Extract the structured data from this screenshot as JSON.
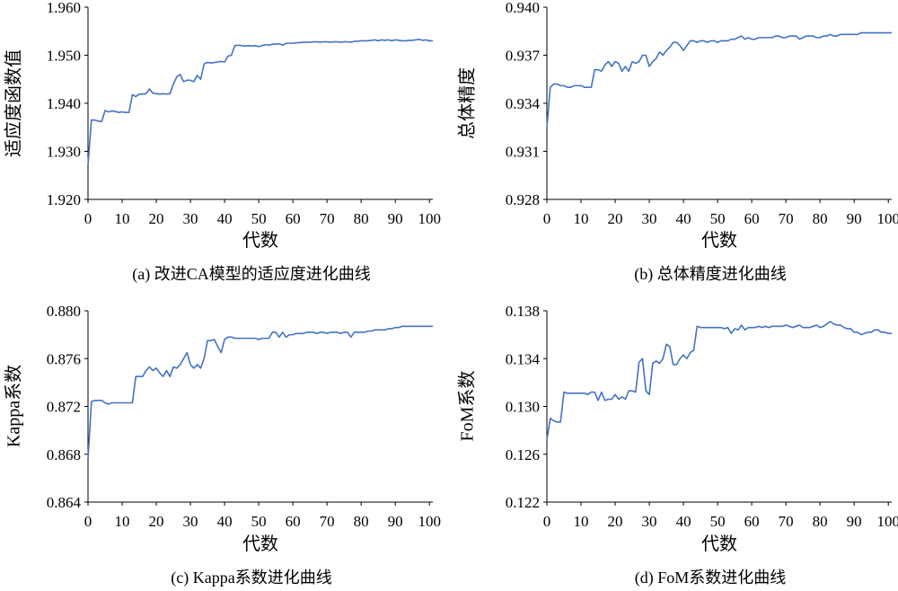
{
  "chart_data": [
    {
      "type": "line",
      "caption": "(a) 改进CA模型的适应度进化曲线",
      "xlabel": "代数",
      "ylabel": "适应度函数值",
      "xlim": [
        0,
        101
      ],
      "ylim": [
        1.92,
        1.96
      ],
      "xticks": [
        "0",
        "10",
        "20",
        "30",
        "40",
        "50",
        "60",
        "70",
        "80",
        "90",
        "100"
      ],
      "yticks": [
        "1.920",
        "1.930",
        "1.940",
        "1.950",
        "1.960"
      ],
      "color": "#4472c4",
      "x": [
        0,
        1,
        2,
        3,
        4,
        5,
        6,
        7,
        8,
        9,
        10,
        11,
        12,
        13,
        14,
        15,
        16,
        17,
        18,
        19,
        20,
        21,
        22,
        23,
        24,
        25,
        26,
        27,
        28,
        29,
        30,
        31,
        32,
        33,
        34,
        35,
        36,
        37,
        38,
        39,
        40,
        41,
        42,
        43,
        44,
        45,
        46,
        47,
        48,
        49,
        50,
        51,
        52,
        53,
        54,
        55,
        56,
        57,
        58,
        59,
        60,
        61,
        62,
        63,
        64,
        65,
        66,
        67,
        68,
        69,
        70,
        71,
        72,
        73,
        74,
        75,
        76,
        77,
        78,
        79,
        80,
        81,
        82,
        83,
        84,
        85,
        86,
        87,
        88,
        89,
        90,
        91,
        92,
        93,
        94,
        95,
        96,
        97,
        98,
        99,
        100,
        101
      ],
      "y": [
        1.9272,
        1.9365,
        1.9365,
        1.9363,
        1.9362,
        1.9385,
        1.9382,
        1.9384,
        1.9383,
        1.9381,
        1.9382,
        1.9381,
        1.9381,
        1.9418,
        1.9414,
        1.9419,
        1.9419,
        1.942,
        1.943,
        1.9421,
        1.942,
        1.9419,
        1.942,
        1.9419,
        1.942,
        1.944,
        1.9455,
        1.946,
        1.9445,
        1.9448,
        1.9448,
        1.9445,
        1.9458,
        1.945,
        1.9482,
        1.9485,
        1.9484,
        1.9485,
        1.9486,
        1.9487,
        1.9486,
        1.9498,
        1.95,
        1.952,
        1.9521,
        1.952,
        1.9519,
        1.952,
        1.9519,
        1.952,
        1.9518,
        1.952,
        1.9522,
        1.9521,
        1.9523,
        1.9523,
        1.9524,
        1.9521,
        1.9525,
        1.9525,
        1.9525,
        1.9526,
        1.9526,
        1.9527,
        1.9527,
        1.9527,
        1.9528,
        1.9528,
        1.9527,
        1.9528,
        1.9528,
        1.9527,
        1.9528,
        1.9528,
        1.9527,
        1.9528,
        1.9528,
        1.9527,
        1.9529,
        1.9529,
        1.953,
        1.953,
        1.953,
        1.9531,
        1.9532,
        1.953,
        1.9532,
        1.9531,
        1.9532,
        1.953,
        1.9532,
        1.9531,
        1.953,
        1.953,
        1.9531,
        1.9531,
        1.9532,
        1.9533,
        1.9531,
        1.9532,
        1.953,
        1.953
      ]
    },
    {
      "type": "line",
      "caption": "(b) 总体精度进化曲线",
      "xlabel": "代数",
      "ylabel": "总体精度",
      "xlim": [
        0,
        101
      ],
      "ylim": [
        0.928,
        0.94
      ],
      "xticks": [
        "0",
        "10",
        "20",
        "30",
        "40",
        "50",
        "60",
        "70",
        "80",
        "90",
        "100"
      ],
      "yticks": [
        "0.928",
        "0.931",
        "0.934",
        "0.937",
        "0.940"
      ],
      "color": "#4472c4",
      "x": [
        0,
        1,
        2,
        3,
        4,
        5,
        6,
        7,
        8,
        9,
        10,
        11,
        12,
        13,
        14,
        15,
        16,
        17,
        18,
        19,
        20,
        21,
        22,
        23,
        24,
        25,
        26,
        27,
        28,
        29,
        30,
        31,
        32,
        33,
        34,
        35,
        36,
        37,
        38,
        39,
        40,
        41,
        42,
        43,
        44,
        45,
        46,
        47,
        48,
        49,
        50,
        51,
        52,
        53,
        54,
        55,
        56,
        57,
        58,
        59,
        60,
        61,
        62,
        63,
        64,
        65,
        66,
        67,
        68,
        69,
        70,
        71,
        72,
        73,
        74,
        75,
        76,
        77,
        78,
        79,
        80,
        81,
        82,
        83,
        84,
        85,
        86,
        87,
        88,
        89,
        90,
        91,
        92,
        93,
        94,
        95,
        96,
        97,
        98,
        99,
        100,
        101
      ],
      "y": [
        0.9325,
        0.935,
        0.9352,
        0.9352,
        0.9351,
        0.9351,
        0.935,
        0.935,
        0.9351,
        0.9351,
        0.9351,
        0.935,
        0.935,
        0.935,
        0.9361,
        0.9361,
        0.936,
        0.9364,
        0.9366,
        0.9363,
        0.9366,
        0.9365,
        0.936,
        0.9363,
        0.936,
        0.9366,
        0.9365,
        0.9366,
        0.937,
        0.937,
        0.9363,
        0.9366,
        0.9368,
        0.9372,
        0.937,
        0.9373,
        0.9375,
        0.9378,
        0.9378,
        0.9376,
        0.9373,
        0.9376,
        0.9379,
        0.9379,
        0.9378,
        0.9379,
        0.9379,
        0.9378,
        0.9379,
        0.9379,
        0.9378,
        0.9379,
        0.9379,
        0.9379,
        0.938,
        0.938,
        0.9381,
        0.9382,
        0.938,
        0.9381,
        0.938,
        0.938,
        0.9381,
        0.9381,
        0.9381,
        0.9381,
        0.9381,
        0.9382,
        0.9382,
        0.9381,
        0.9381,
        0.9382,
        0.9382,
        0.9382,
        0.938,
        0.9381,
        0.9382,
        0.9382,
        0.9382,
        0.9381,
        0.9381,
        0.9382,
        0.9382,
        0.9383,
        0.9382,
        0.9382,
        0.9383,
        0.9383,
        0.9383,
        0.9383,
        0.9383,
        0.9383,
        0.9384,
        0.9384,
        0.9384,
        0.9384,
        0.9384,
        0.9384,
        0.9384,
        0.9384,
        0.9384,
        0.9384
      ]
    },
    {
      "type": "line",
      "caption": "(c) Kappa系数进化曲线",
      "xlabel": "代数",
      "ylabel": "Kappa系数",
      "xlim": [
        0,
        101
      ],
      "ylim": [
        0.864,
        0.88
      ],
      "xticks": [
        "0",
        "10",
        "20",
        "30",
        "40",
        "50",
        "60",
        "70",
        "80",
        "90",
        "100"
      ],
      "yticks": [
        "0.864",
        "0.868",
        "0.872",
        "0.876",
        "0.880"
      ],
      "color": "#4472c4",
      "x": [
        0,
        1,
        2,
        3,
        4,
        5,
        6,
        7,
        8,
        9,
        10,
        11,
        12,
        13,
        14,
        15,
        16,
        17,
        18,
        19,
        20,
        21,
        22,
        23,
        24,
        25,
        26,
        27,
        28,
        29,
        30,
        31,
        32,
        33,
        34,
        35,
        36,
        37,
        38,
        39,
        40,
        41,
        42,
        43,
        44,
        45,
        46,
        47,
        48,
        49,
        50,
        51,
        52,
        53,
        54,
        55,
        56,
        57,
        58,
        59,
        60,
        61,
        62,
        63,
        64,
        65,
        66,
        67,
        68,
        69,
        70,
        71,
        72,
        73,
        74,
        75,
        76,
        77,
        78,
        79,
        80,
        81,
        82,
        83,
        84,
        85,
        86,
        87,
        88,
        89,
        90,
        91,
        92,
        93,
        94,
        95,
        96,
        97,
        98,
        99,
        100,
        101
      ],
      "y": [
        0.8676,
        0.8724,
        0.8725,
        0.8725,
        0.8725,
        0.8723,
        0.8722,
        0.8723,
        0.8723,
        0.8723,
        0.8723,
        0.8723,
        0.8723,
        0.8723,
        0.8745,
        0.8745,
        0.8745,
        0.875,
        0.8753,
        0.875,
        0.8752,
        0.8748,
        0.8745,
        0.875,
        0.8745,
        0.8753,
        0.8752,
        0.8755,
        0.876,
        0.8765,
        0.8755,
        0.8752,
        0.8755,
        0.8752,
        0.876,
        0.8775,
        0.8775,
        0.8776,
        0.877,
        0.8765,
        0.8776,
        0.8778,
        0.8778,
        0.8777,
        0.8777,
        0.8777,
        0.8777,
        0.8777,
        0.8777,
        0.8777,
        0.8776,
        0.8777,
        0.8777,
        0.8777,
        0.8782,
        0.8782,
        0.8778,
        0.8782,
        0.8778,
        0.878,
        0.878,
        0.8781,
        0.8781,
        0.8781,
        0.8782,
        0.8782,
        0.8782,
        0.8781,
        0.8782,
        0.8782,
        0.8781,
        0.8782,
        0.8782,
        0.8782,
        0.8781,
        0.8782,
        0.8782,
        0.8778,
        0.8782,
        0.8782,
        0.8782,
        0.8782,
        0.8783,
        0.8783,
        0.8784,
        0.8784,
        0.8784,
        0.8784,
        0.8785,
        0.8785,
        0.8786,
        0.8786,
        0.8787,
        0.8787,
        0.8787,
        0.8787,
        0.8787,
        0.8787,
        0.8787,
        0.8787,
        0.8787,
        0.8787
      ]
    },
    {
      "type": "line",
      "caption": "(d) FoM系数进化曲线",
      "xlabel": "代数",
      "ylabel": "FoM系数",
      "xlim": [
        0,
        101
      ],
      "ylim": [
        0.122,
        0.138
      ],
      "xticks": [
        "0",
        "10",
        "20",
        "30",
        "40",
        "50",
        "60",
        "70",
        "80",
        "90",
        "100"
      ],
      "yticks": [
        "0.122",
        "0.126",
        "0.130",
        "0.134",
        "0.138"
      ],
      "color": "#4472c4",
      "x": [
        0,
        1,
        2,
        3,
        4,
        5,
        6,
        7,
        8,
        9,
        10,
        11,
        12,
        13,
        14,
        15,
        16,
        17,
        18,
        19,
        20,
        21,
        22,
        23,
        24,
        25,
        26,
        27,
        28,
        29,
        30,
        31,
        32,
        33,
        34,
        35,
        36,
        37,
        38,
        39,
        40,
        41,
        42,
        43,
        44,
        45,
        46,
        47,
        48,
        49,
        50,
        51,
        52,
        53,
        54,
        55,
        56,
        57,
        58,
        59,
        60,
        61,
        62,
        63,
        64,
        65,
        66,
        67,
        68,
        69,
        70,
        71,
        72,
        73,
        74,
        75,
        76,
        77,
        78,
        79,
        80,
        81,
        82,
        83,
        84,
        85,
        86,
        87,
        88,
        89,
        90,
        91,
        92,
        93,
        94,
        95,
        96,
        97,
        98,
        99,
        100,
        101
      ],
      "y": [
        0.1272,
        0.129,
        0.1288,
        0.1287,
        0.1287,
        0.1312,
        0.1311,
        0.1311,
        0.1311,
        0.1311,
        0.1311,
        0.1311,
        0.131,
        0.1312,
        0.1312,
        0.1305,
        0.1312,
        0.1305,
        0.1306,
        0.1306,
        0.131,
        0.1306,
        0.1308,
        0.1306,
        0.1313,
        0.1313,
        0.1312,
        0.1337,
        0.134,
        0.1313,
        0.131,
        0.1336,
        0.1338,
        0.1336,
        0.134,
        0.1352,
        0.135,
        0.1335,
        0.1335,
        0.134,
        0.1343,
        0.134,
        0.1345,
        0.1347,
        0.1367,
        0.1366,
        0.1366,
        0.1366,
        0.1366,
        0.1366,
        0.1366,
        0.1366,
        0.1365,
        0.1366,
        0.1361,
        0.1365,
        0.1364,
        0.1368,
        0.1364,
        0.1366,
        0.1366,
        0.1366,
        0.1367,
        0.1366,
        0.1367,
        0.1366,
        0.1367,
        0.1367,
        0.1367,
        0.1367,
        0.1368,
        0.1367,
        0.1366,
        0.1367,
        0.1368,
        0.1366,
        0.1366,
        0.1366,
        0.1367,
        0.1368,
        0.1366,
        0.1367,
        0.1369,
        0.1371,
        0.1369,
        0.1368,
        0.1368,
        0.1366,
        0.1365,
        0.1365,
        0.1362,
        0.1362,
        0.136,
        0.1361,
        0.1362,
        0.1362,
        0.1364,
        0.1364,
        0.1362,
        0.1362,
        0.1361,
        0.1361
      ]
    }
  ]
}
